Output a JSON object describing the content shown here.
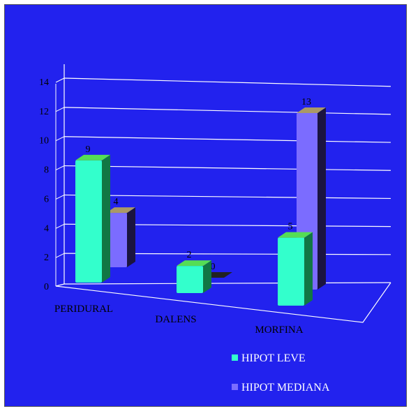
{
  "chart_data": {
    "type": "bar",
    "categories": [
      "PERIDURAL",
      "DALENS",
      "MORFINA"
    ],
    "series": [
      {
        "name": "HIPOT LEVE",
        "values": [
          9,
          2,
          5
        ],
        "color": "#33ffcc"
      },
      {
        "name": "HIPOT MEDIANA",
        "values": [
          4,
          0,
          13
        ],
        "color": "#7b6cff"
      }
    ],
    "yticks": [
      "0",
      "2",
      "4",
      "6",
      "8",
      "10",
      "12",
      "14"
    ],
    "ylim": [
      0,
      14
    ],
    "grid": true,
    "legend_position": "bottom-right",
    "background": "#2222ee"
  }
}
